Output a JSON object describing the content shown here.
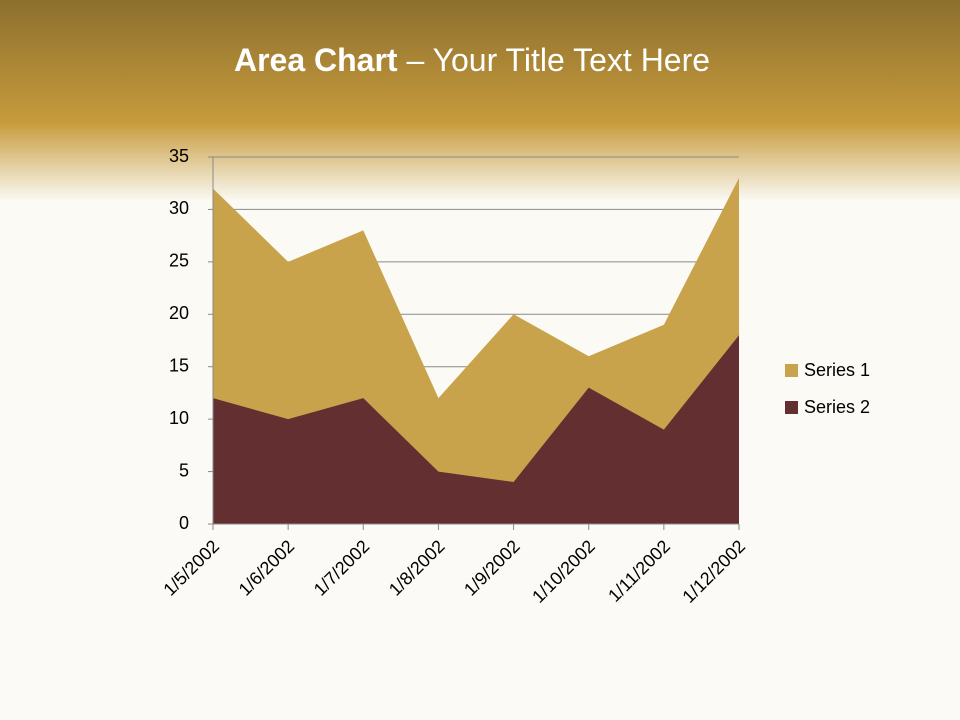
{
  "chart_data": {
    "type": "area",
    "title": "Area Chart",
    "subtitle": "– Your Title Text Here",
    "categories": [
      "1/5/2002",
      "1/6/2002",
      "1/7/2002",
      "1/8/2002",
      "1/9/2002",
      "1/10/2002",
      "1/11/2002",
      "1/12/2002"
    ],
    "series": [
      {
        "name": "Series 1",
        "color": "#c9a34b",
        "values": [
          32,
          25,
          28,
          12,
          20,
          16,
          19,
          33
        ]
      },
      {
        "name": "Series 2",
        "color": "#632f31",
        "values": [
          12,
          10,
          12,
          5,
          4,
          13,
          9,
          18
        ]
      }
    ],
    "ylim": [
      0,
      35
    ],
    "yticks": [
      0,
      5,
      10,
      15,
      20,
      25,
      30,
      35
    ],
    "grid": true,
    "legend": "right"
  }
}
